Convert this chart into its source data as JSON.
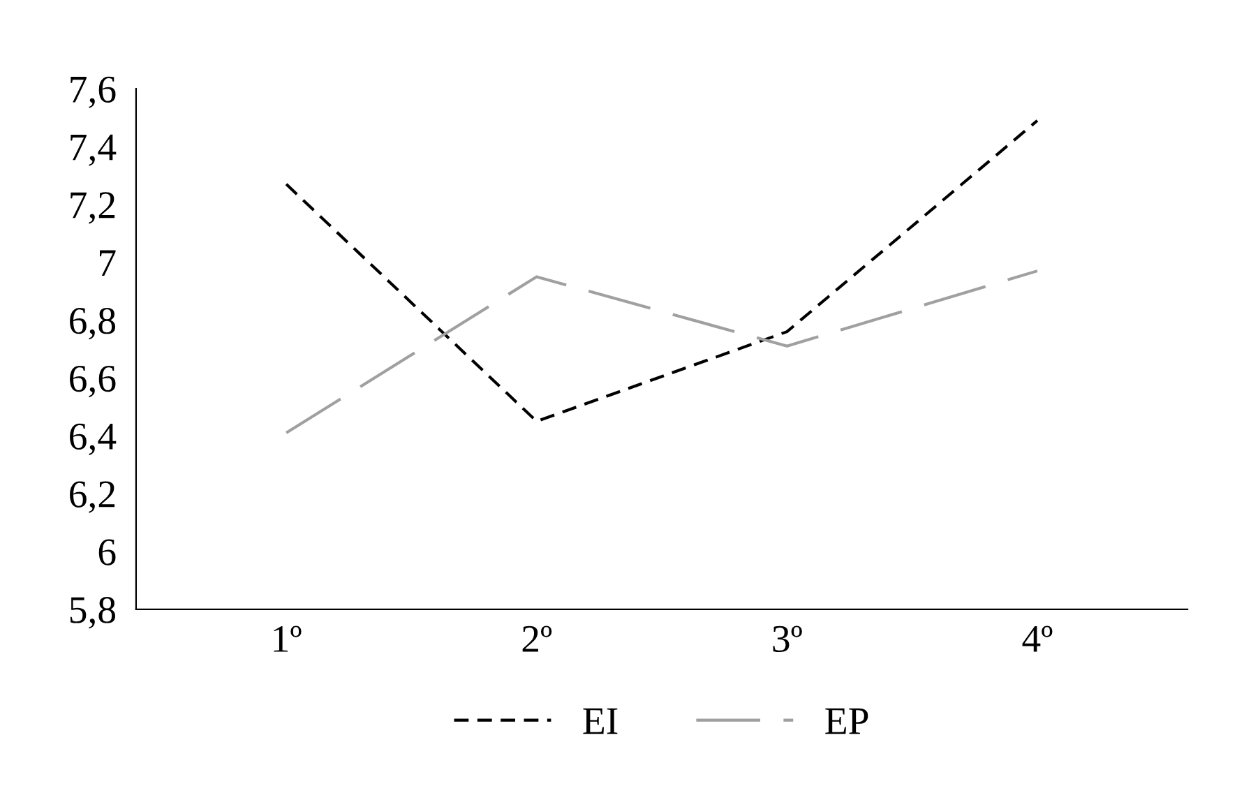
{
  "chart_data": {
    "type": "line",
    "categories": [
      "1º",
      "2º",
      "3º",
      "4º"
    ],
    "series": [
      {
        "name": "EI",
        "color": "#000000",
        "line_style": "dashed",
        "values": [
          7.27,
          6.45,
          6.76,
          7.49
        ]
      },
      {
        "name": "EP",
        "color": "#a0a0a0",
        "line_style": "longdash",
        "values": [
          6.41,
          6.95,
          6.71,
          6.97
        ]
      }
    ],
    "ylim": [
      5.8,
      7.6
    ],
    "yticks": [
      {
        "value": 5.8,
        "label": "5,8"
      },
      6,
      {
        "value": 6.2,
        "label": "6,2"
      },
      {
        "value": 6.4,
        "label": "6,4"
      },
      {
        "value": 6.6,
        "label": "6,6"
      },
      {
        "value": 6.8,
        "label": "6,8"
      },
      7,
      {
        "value": 7.2,
        "label": "7,2"
      },
      {
        "value": 7.4,
        "label": "7,4"
      },
      {
        "value": 7.6,
        "label": "7,6"
      }
    ],
    "grid": false,
    "legend": "bottom",
    "marker": "none"
  }
}
